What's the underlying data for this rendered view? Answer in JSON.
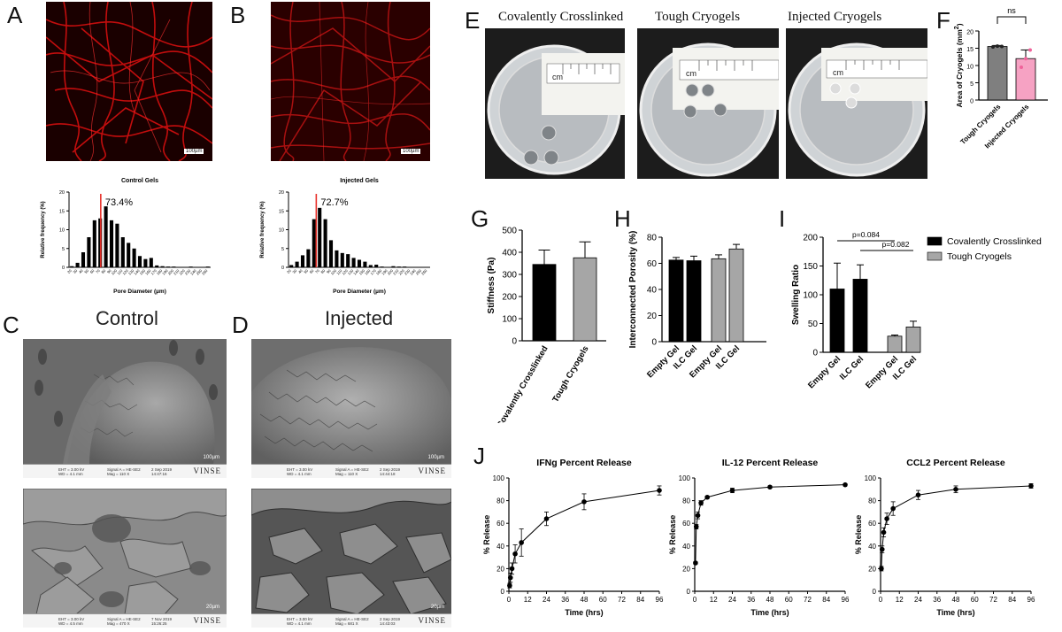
{
  "panels": {
    "A": {
      "letter": "A",
      "scale_label": "100µm"
    },
    "B": {
      "letter": "B",
      "scale_label": "100µm"
    },
    "C": {
      "letter": "C",
      "condition": "Control",
      "sem_top": {
        "scale_label": "100µm",
        "brand": "VINSE",
        "footer": [
          "EHT = 3.00 kV",
          "WD = 4.1 mm",
          "Signal A = HE-SE2",
          "Mag = 110 X",
          "2 Sep 2019",
          "14:47:16"
        ]
      },
      "sem_bottom": {
        "scale_label": "20µm",
        "brand": "VINSE",
        "footer": [
          "EHT = 3.00 kV",
          "WD = 4.5 mm",
          "Signal A = HE-SE2",
          "Mag = 470 X",
          "7 Nov 2019",
          "15:26:25"
        ]
      }
    },
    "D": {
      "letter": "D",
      "condition": "Injected",
      "sem_top": {
        "scale_label": "100µm",
        "brand": "VINSE",
        "footer": [
          "EHT = 3.00 kV",
          "WD = 4.1 mm",
          "Signal A = HE-SE2",
          "Mag = 110 X",
          "2 Sep 2019",
          "14:44:18"
        ]
      },
      "sem_bottom": {
        "scale_label": "20µm",
        "brand": "VINSE",
        "footer": [
          "EHT = 3.00 kV",
          "WD = 4.1 mm",
          "Signal A = HE-SE2",
          "Mag = 681 X",
          "2 Sep 2019",
          "14:43:03"
        ]
      }
    },
    "E": {
      "letter": "E",
      "dishes": [
        {
          "title": "Covalently Crosslinked",
          "ruler": "cm"
        },
        {
          "title": "Tough Cryogels",
          "ruler": "cm"
        },
        {
          "title": "Injected Cryogels",
          "ruler": "cm"
        }
      ]
    },
    "F": {
      "letter": "F"
    },
    "G": {
      "letter": "G"
    },
    "H": {
      "letter": "H"
    },
    "I": {
      "letter": "I"
    },
    "J": {
      "letter": "J"
    }
  },
  "chart_data": [
    {
      "id": "A_hist",
      "type": "bar",
      "title": "Control Gels",
      "xlabel": "Pore Diameter (µm)",
      "ylabel": "Relative frequency (%)",
      "categories": [
        "20",
        "30",
        "40",
        "50",
        "60",
        "70",
        "80",
        "90",
        "100",
        "110",
        "120",
        "130",
        "140",
        "150",
        "160",
        "170",
        "180",
        "190",
        "200",
        "210",
        "220",
        "230",
        "240",
        "250",
        "260"
      ],
      "values": [
        0.3,
        1.2,
        4,
        8,
        12.5,
        13,
        16.2,
        12.5,
        11.6,
        8,
        6.5,
        5,
        3,
        2.2,
        2.5,
        0.5,
        0.3,
        0.2,
        0.2,
        0.1,
        0.1,
        0.2,
        0.1,
        0.1,
        0.2
      ],
      "ylim": [
        0,
        20
      ],
      "yticks": [
        0,
        5,
        10,
        15,
        20
      ],
      "marker_index": 5.6,
      "marker_color": "#e8312a",
      "annotation": "73.4%"
    },
    {
      "id": "B_hist",
      "type": "bar",
      "title": "Injected Gels",
      "xlabel": "Pore Diameter (µm)",
      "ylabel": "Relative frequency (%)",
      "categories": [
        "20",
        "30",
        "40",
        "50",
        "60",
        "70",
        "80",
        "90",
        "100",
        "110",
        "120",
        "130",
        "140",
        "150",
        "160",
        "170",
        "180",
        "190",
        "200",
        "210",
        "220",
        "230",
        "240",
        "250",
        "260"
      ],
      "values": [
        0.6,
        1.5,
        3.2,
        4.8,
        12.8,
        15.8,
        12.8,
        7.2,
        4.5,
        3.8,
        3.5,
        2.5,
        2,
        1.5,
        0.6,
        0.7,
        0.2,
        0.1,
        0.3,
        0.2,
        0.2,
        0.1,
        0.1,
        0.1,
        0.1
      ],
      "ylim": [
        0,
        20
      ],
      "yticks": [
        0,
        5,
        10,
        15,
        20
      ],
      "marker_index": 4.9,
      "marker_color": "#e8312a",
      "annotation": "72.7%"
    },
    {
      "id": "F",
      "type": "bar",
      "title": "",
      "ylabel": "Area of Cryogels (mm²)",
      "ylabel_main": "Area of Cryogels (mm",
      "ylabel_sup": "2",
      "ylabel_end": ")",
      "categories": [
        "Tough Cryogels",
        "Injected Cryogels"
      ],
      "values": [
        15.5,
        12
      ],
      "errors": [
        0.3,
        2.5
      ],
      "colors": [
        "#7f7f7f",
        "#f6a2c3"
      ],
      "points": [
        [
          15.4,
          15.6,
          15.5
        ],
        [
          9.5,
          12,
          14.5
        ]
      ],
      "point_colors": [
        "#222222",
        "#f0629a"
      ],
      "ylim": [
        0,
        20
      ],
      "yticks": [
        0,
        5,
        10,
        15,
        20
      ],
      "significance": "ns"
    },
    {
      "id": "G",
      "type": "bar",
      "ylabel": "Stiffness (Pa)",
      "categories": [
        "Covalently Crosslinked",
        "Tough Cryogels"
      ],
      "values": [
        345,
        375
      ],
      "errors": [
        65,
        72
      ],
      "colors": [
        "#000000",
        "#a6a6a6"
      ],
      "ylim": [
        0,
        500
      ],
      "yticks": [
        0,
        100,
        200,
        300,
        400,
        500
      ]
    },
    {
      "id": "H",
      "type": "bar",
      "ylabel": "Interconnected Porosity (%)",
      "categories": [
        "Empty Gel",
        "ILC Gel",
        "Empty Gel",
        "ILC Gel"
      ],
      "values": [
        62.5,
        62,
        63.5,
        71
      ],
      "errors": [
        2,
        3.5,
        3,
        3.5
      ],
      "colors": [
        "#000000",
        "#000000",
        "#a6a6a6",
        "#a6a6a6"
      ],
      "ylim": [
        0,
        80
      ],
      "yticks": [
        0,
        20,
        40,
        60,
        80
      ]
    },
    {
      "id": "I",
      "type": "bar",
      "ylabel": "Swelling Ratio",
      "categories": [
        "Empty Gel",
        "ILC Gel",
        "Empty Gel",
        "ILC Gel"
      ],
      "values": [
        110,
        127,
        28,
        44
      ],
      "errors": [
        45,
        25,
        2,
        10
      ],
      "colors": [
        "#000000",
        "#000000",
        "#a6a6a6",
        "#a6a6a6"
      ],
      "ylim": [
        0,
        200
      ],
      "yticks": [
        0,
        50,
        100,
        150,
        200
      ],
      "brackets": [
        {
          "text": "p=0.084",
          "from": 0,
          "to": 2
        },
        {
          "text": "p=0.082",
          "from": 1,
          "to": 3
        }
      ],
      "legend": [
        {
          "name": "Covalently Crosslinked",
          "color": "#000000"
        },
        {
          "name": "Tough Cryogels",
          "color": "#a6a6a6"
        }
      ]
    },
    {
      "id": "J1",
      "type": "line",
      "title": "IFNg Percent Release",
      "xlabel": "Time (hrs)",
      "ylabel": "% Release",
      "x": [
        0.5,
        1,
        2,
        4,
        8,
        24,
        48,
        96
      ],
      "y": [
        5,
        12,
        20,
        33,
        43,
        64,
        79,
        89
      ],
      "errors": [
        2,
        4,
        5,
        8,
        12,
        6,
        7,
        4
      ],
      "xlim": [
        0,
        96
      ],
      "ylim": [
        0,
        100
      ],
      "xticks": [
        0,
        12,
        24,
        36,
        48,
        60,
        72,
        84,
        96
      ],
      "yticks": [
        0,
        20,
        40,
        60,
        80,
        100
      ]
    },
    {
      "id": "J2",
      "type": "line",
      "title": "IL-12 Percent Release",
      "xlabel": "Time (hrs)",
      "ylabel": "% Release",
      "x": [
        0.5,
        1,
        2,
        4,
        8,
        24,
        48,
        96
      ],
      "y": [
        25,
        57,
        67,
        78,
        83,
        89,
        92,
        94
      ],
      "errors": [
        1,
        2,
        3,
        2,
        1,
        2,
        1,
        1
      ],
      "xlim": [
        0,
        96
      ],
      "ylim": [
        0,
        100
      ],
      "xticks": [
        0,
        12,
        24,
        36,
        48,
        60,
        72,
        84,
        96
      ],
      "yticks": [
        0,
        20,
        40,
        60,
        80,
        100
      ]
    },
    {
      "id": "J3",
      "type": "line",
      "title": "CCL2 Percent Release",
      "xlabel": "Time (hrs)",
      "ylabel": "% Release",
      "x": [
        0.5,
        1,
        2,
        4,
        8,
        24,
        48,
        96
      ],
      "y": [
        20,
        37,
        52,
        64,
        73,
        85,
        90,
        93
      ],
      "errors": [
        2,
        3,
        4,
        5,
        6,
        4,
        3,
        2
      ],
      "xlim": [
        0,
        96
      ],
      "ylim": [
        0,
        100
      ],
      "xticks": [
        0,
        12,
        24,
        36,
        48,
        60,
        72,
        84,
        96
      ],
      "yticks": [
        0,
        20,
        40,
        60,
        80,
        100
      ]
    }
  ]
}
